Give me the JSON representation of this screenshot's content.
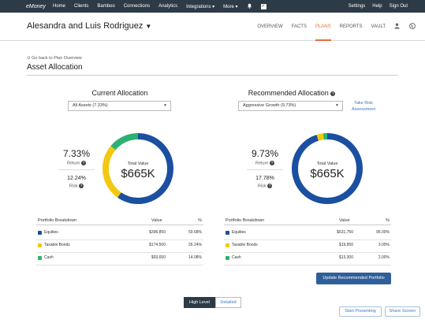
{
  "topnav": {
    "logo": "eMoney",
    "items": [
      "Home",
      "Clients",
      "Bamboo",
      "Connections",
      "Analytics",
      "Integrations ▾",
      "More ▾"
    ],
    "right_items": [
      "Settings",
      "Help",
      "Sign Out"
    ]
  },
  "client": {
    "name": "Alesandra and Luis Rodriguez"
  },
  "tabs": [
    "OVERVIEW",
    "FACTS",
    "PLANS",
    "REPORTS",
    "VAULT"
  ],
  "active_tab": "PLANS",
  "page": {
    "back_link": "Go back to Plan Overview",
    "title": "Asset Allocation"
  },
  "current": {
    "title": "Current Allocation",
    "select_value": "All Assets (7.33%)",
    "return_value": "7.33%",
    "return_label": "Return",
    "risk_value": "12.24%",
    "risk_label": "Risk",
    "total_label": "Total Value",
    "total_value": "$665K",
    "breakdown": {
      "headers": [
        "Portfolio Breakdown",
        "Value",
        "%"
      ],
      "rows": [
        {
          "name": "Equities",
          "value": "$396,850",
          "pct": "59.68%",
          "fraction": 0.5968,
          "color": "#1b4fa0"
        },
        {
          "name": "Taxable Bonds",
          "value": "$174,500",
          "pct": "26.24%",
          "fraction": 0.2624,
          "color": "#f2c811"
        },
        {
          "name": "Cash",
          "value": "$93,650",
          "pct": "14.08%",
          "fraction": 0.1408,
          "color": "#2cb172"
        }
      ]
    }
  },
  "recommended": {
    "title": "Recommended Allocation",
    "select_value": "Aggressive Growth (9.73%)",
    "risk_link": "Take Risk Assessment",
    "return_value": "9.73%",
    "return_label": "Return",
    "risk_value": "17.78%",
    "risk_label": "Risk",
    "total_label": "Total Value",
    "total_value": "$665K",
    "breakdown": {
      "headers": [
        "Portfolio Breakdown",
        "Value",
        "%"
      ],
      "rows": [
        {
          "name": "Equities",
          "value": "$631,750",
          "pct": "95.00%",
          "fraction": 0.95,
          "color": "#1b4fa0"
        },
        {
          "name": "Taxable Bonds",
          "value": "$19,950",
          "pct": "3.00%",
          "fraction": 0.03,
          "color": "#f2c811"
        },
        {
          "name": "Cash",
          "value": "$13,300",
          "pct": "2.00%",
          "fraction": 0.02,
          "color": "#2cb172"
        }
      ]
    },
    "update_button": "Update Recommended Portfolio"
  },
  "view_toggle": {
    "on": "High Level",
    "off": "Detailed"
  },
  "footer_buttons": {
    "start": "Start Presenting",
    "share": "Share Screen"
  }
}
